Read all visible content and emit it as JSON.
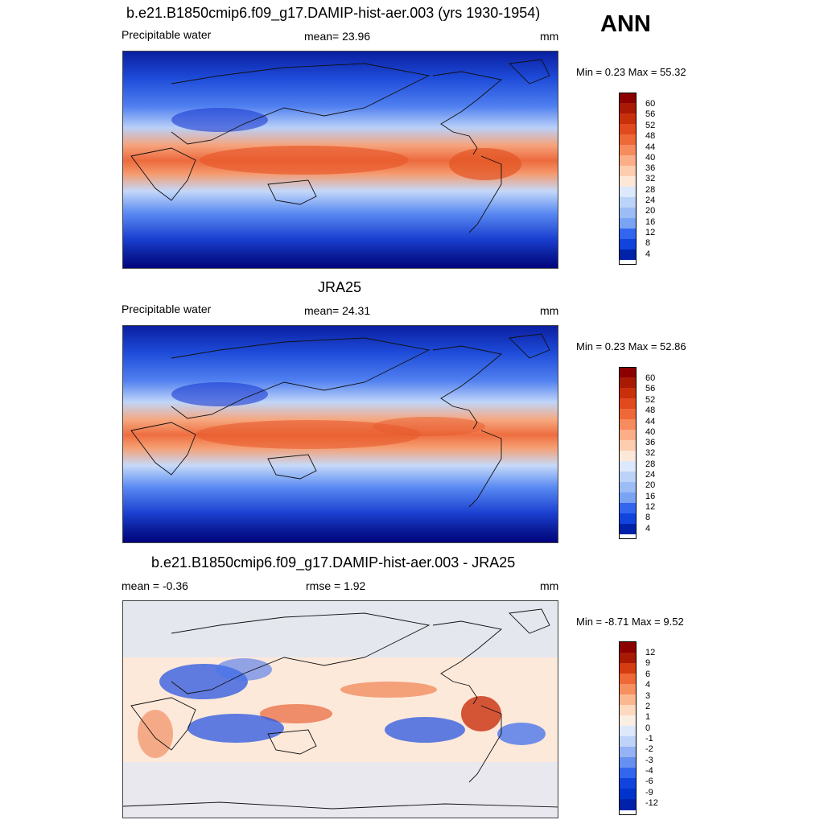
{
  "season": "ANN",
  "colors": {
    "abs_scale": [
      "#00008b",
      "#0022a8",
      "#0033cc",
      "#1144dd",
      "#3366ee",
      "#5588f2",
      "#7aa3f4",
      "#9cbcf6",
      "#bcd3f8",
      "#dce8fb",
      "#fde8d8",
      "#fdcdb0",
      "#fbae88",
      "#f68b5e",
      "#ee6838",
      "#e04a1e",
      "#c8300c",
      "#a81a04",
      "#8b0000"
    ],
    "diff_scale": [
      "#00008b",
      "#0022a8",
      "#0033cc",
      "#1144dd",
      "#3366ee",
      "#6690f0",
      "#94b2f4",
      "#bed3f8",
      "#dde9fb",
      "#fbeee4",
      "#fdd9c0",
      "#fbb890",
      "#f69060",
      "#ee6838",
      "#d43d12",
      "#a81a04",
      "#8b0000"
    ]
  },
  "panels": [
    {
      "title": "b.e21.B1850cmip6.f09_g17.DAMIP-hist-aer.003 (yrs 1930-1954)",
      "left_label": "Precipitable water",
      "center_label": "mean=  23.96",
      "units": "mm",
      "minmax": "Min =   0.23 Max =  55.32",
      "colorbar_ticks": [
        "60",
        "56",
        "52",
        "48",
        "44",
        "40",
        "36",
        "32",
        "28",
        "24",
        "20",
        "16",
        "12",
        "8",
        "4"
      ]
    },
    {
      "title": "JRA25",
      "left_label": "Precipitable water",
      "center_label": "mean=  24.31",
      "units": "mm",
      "minmax": "Min =   0.23 Max =  52.86",
      "colorbar_ticks": [
        "60",
        "56",
        "52",
        "48",
        "44",
        "40",
        "36",
        "32",
        "28",
        "24",
        "20",
        "16",
        "12",
        "8",
        "4"
      ]
    },
    {
      "title": "b.e21.B1850cmip6.f09_g17.DAMIP-hist-aer.003 - JRA25",
      "left_label": "mean =  -0.36",
      "center_label": "rmse =   1.92",
      "units": "mm",
      "minmax": "Min =  -8.71 Max =   9.52",
      "colorbar_ticks": [
        "12",
        "9",
        "6",
        "4",
        "3",
        "2",
        "1",
        "0",
        "-1",
        "-2",
        "-3",
        "-4",
        "-6",
        "-9",
        "-12"
      ]
    }
  ]
}
